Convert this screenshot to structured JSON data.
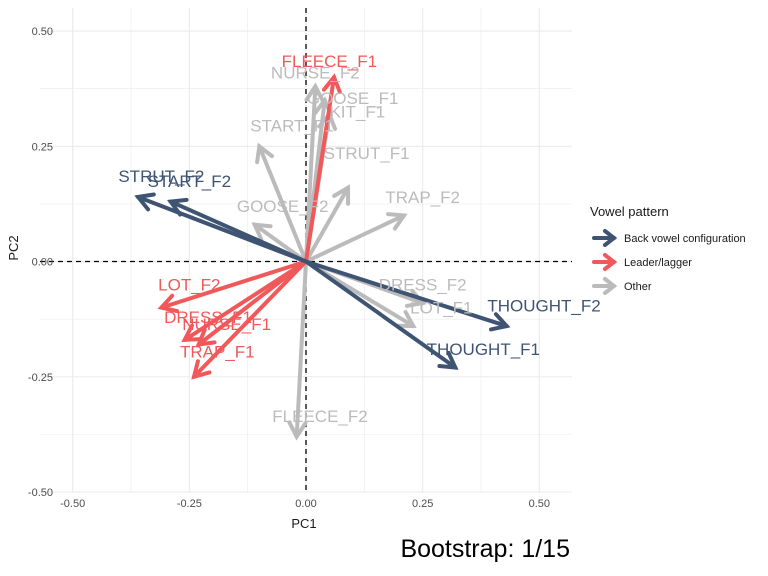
{
  "chart_data": {
    "type": "biplot",
    "xlabel": "PC1",
    "ylabel": "PC2",
    "xlim": [
      -0.57,
      0.57
    ],
    "ylim": [
      -0.5,
      0.55
    ],
    "x_ticks": [
      -0.5,
      -0.25,
      0,
      0.25,
      0.5
    ],
    "x_tick_labels": [
      "-0.50",
      "-0.25",
      "0.00",
      "0.25",
      "0.50"
    ],
    "y_ticks": [
      -0.5,
      -0.25,
      0,
      0.25,
      0.5
    ],
    "y_tick_labels": [
      "-0.50",
      "-0.25",
      "0.00",
      "0.25",
      "0.50"
    ],
    "grid": true,
    "reference_lines": [
      "x=0 dashed",
      "y=0 dashed"
    ],
    "legend": {
      "title": "Vowel pattern",
      "position": "right",
      "entries": [
        {
          "name": "Back vowel configuration",
          "color": "#3F5473"
        },
        {
          "name": "Leader/lagger",
          "color": "#F0585A"
        },
        {
          "name": "Other",
          "color": "#BBBBBB"
        }
      ]
    },
    "caption": "Bootstrap: 1/15",
    "vectors": [
      {
        "label": "FLEECE_F2",
        "group": "Other",
        "x": -0.02,
        "y": -0.38,
        "lx": 0.03,
        "ly": -0.335
      },
      {
        "label": "GOOSE_F2",
        "group": "Other",
        "x": -0.11,
        "y": 0.08,
        "lx": -0.05,
        "ly": 0.12
      },
      {
        "label": "START_F1",
        "group": "Other",
        "x": -0.1,
        "y": 0.25,
        "lx": -0.03,
        "ly": 0.295
      },
      {
        "label": "NURSE_F2",
        "group": "Other",
        "x": 0.02,
        "y": 0.38,
        "lx": 0.02,
        "ly": 0.41
      },
      {
        "label": "GOOSE_F1",
        "group": "Other",
        "x": 0.04,
        "y": 0.35,
        "lx": 0.1,
        "ly": 0.355
      },
      {
        "label": "KIT_F1",
        "group": "Other",
        "x": 0.05,
        "y": 0.32,
        "lx": 0.11,
        "ly": 0.325
      },
      {
        "label": "STRUT_F1",
        "group": "Other",
        "x": 0.09,
        "y": 0.16,
        "lx": 0.13,
        "ly": 0.235
      },
      {
        "label": "TRAP_F2",
        "group": "Other",
        "x": 0.21,
        "y": 0.1,
        "lx": 0.25,
        "ly": 0.14
      },
      {
        "label": "DRESS_F2",
        "group": "Other",
        "x": 0.25,
        "y": -0.09,
        "lx": 0.25,
        "ly": -0.05
      },
      {
        "label": "LOT_F1",
        "group": "Other",
        "x": 0.23,
        "y": -0.14,
        "lx": 0.29,
        "ly": -0.1
      },
      {
        "label": "STRUT_F2",
        "group": "Back vowel configuration",
        "x": -0.36,
        "y": 0.14,
        "lx": -0.31,
        "ly": 0.185
      },
      {
        "label": "START_F2",
        "group": "Back vowel configuration",
        "x": -0.29,
        "y": 0.13,
        "lx": -0.25,
        "ly": 0.175
      },
      {
        "label": "THOUGHT_F2",
        "group": "Back vowel configuration",
        "x": 0.43,
        "y": -0.14,
        "lx": 0.51,
        "ly": -0.095
      },
      {
        "label": "THOUGHT_F1",
        "group": "Back vowel configuration",
        "x": 0.32,
        "y": -0.23,
        "lx": 0.38,
        "ly": -0.19
      },
      {
        "label": "FLEECE_F1",
        "group": "Leader/lagger",
        "x": 0.06,
        "y": 0.4,
        "lx": 0.05,
        "ly": 0.435
      },
      {
        "label": "LOT_F2",
        "group": "Leader/lagger",
        "x": -0.31,
        "y": -0.1,
        "lx": -0.25,
        "ly": -0.05
      },
      {
        "label": "DRESS_F1",
        "group": "Leader/lagger",
        "x": -0.26,
        "y": -0.17,
        "lx": -0.21,
        "ly": -0.12
      },
      {
        "label": "NURSE_F1",
        "group": "Leader/lagger",
        "x": -0.23,
        "y": -0.18,
        "lx": -0.17,
        "ly": -0.135
      },
      {
        "label": "TRAP_F1",
        "group": "Leader/lagger",
        "x": -0.24,
        "y": -0.25,
        "lx": -0.19,
        "ly": -0.195
      }
    ]
  }
}
